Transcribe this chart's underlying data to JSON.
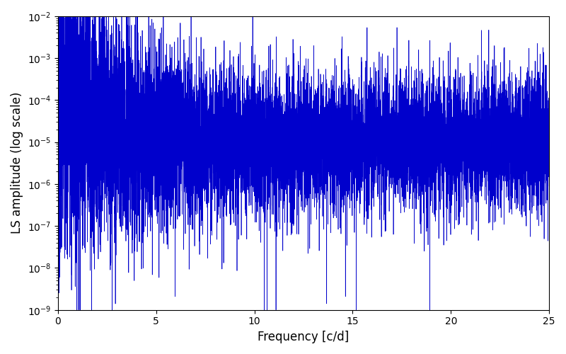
{
  "xlabel": "Frequency [c/d]",
  "ylabel": "LS amplitude (log scale)",
  "xlim": [
    0,
    25
  ],
  "ylim": [
    1e-09,
    0.01
  ],
  "line_color": "#0000cc",
  "line_width": 0.5,
  "figsize": [
    8.0,
    5.0
  ],
  "dpi": 100,
  "n_points": 10000,
  "freq_max": 25.0,
  "seed": 7,
  "background_color": "#ffffff"
}
